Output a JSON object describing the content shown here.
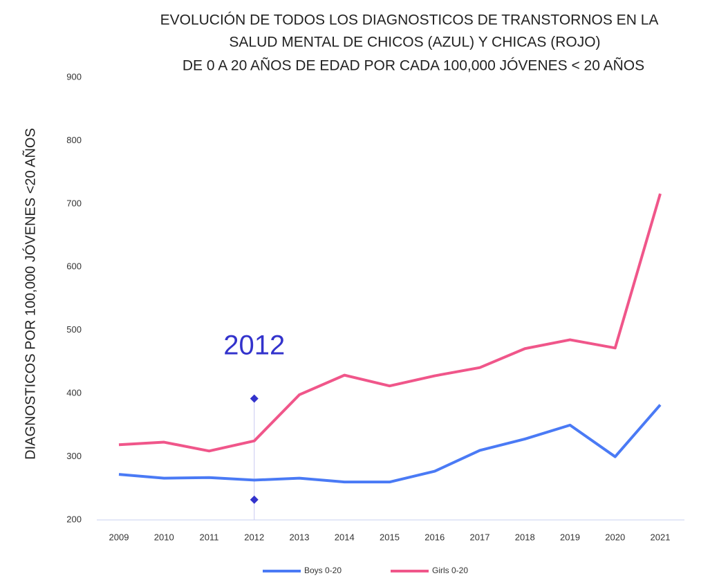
{
  "chart_data": {
    "type": "line",
    "title": [
      "EVOLUCIÓN DE TODOS LOS DIAGNOSTICOS DE TRANSTORNOS EN LA",
      "SALUD MENTAL DE CHICOS (AZUL) Y CHICAS (ROJO)",
      "DE 0 A 20 AÑOS DE EDAD POR CADA 100,000 JÓVENES < 20 AÑOS"
    ],
    "y_label": "DIAGNOSTICOS POR 100,000 JÓVENES <20 AÑOS",
    "categories": [
      "2009",
      "2010",
      "2011",
      "2012",
      "2013",
      "2014",
      "2015",
      "2016",
      "2017",
      "2018",
      "2019",
      "2020",
      "2021"
    ],
    "series": [
      {
        "name": "Boys 0-20",
        "color": "#4a7af5",
        "values": [
          272,
          266,
          267,
          263,
          266,
          260,
          260,
          277,
          310,
          328,
          350,
          300,
          382
        ]
      },
      {
        "name": "Girls 0-20",
        "color": "#f0568a",
        "values": [
          319,
          323,
          309,
          325,
          398,
          429,
          412,
          428,
          441,
          471,
          485,
          472,
          716
        ]
      }
    ],
    "ylim": [
      200,
      900
    ],
    "yticks": [
      200,
      300,
      400,
      500,
      600,
      700,
      800,
      900
    ],
    "annotation": {
      "text": "2012",
      "category": "2012",
      "values": [
        392,
        232
      ],
      "color": "#3333cc"
    },
    "legend": "bottom"
  }
}
